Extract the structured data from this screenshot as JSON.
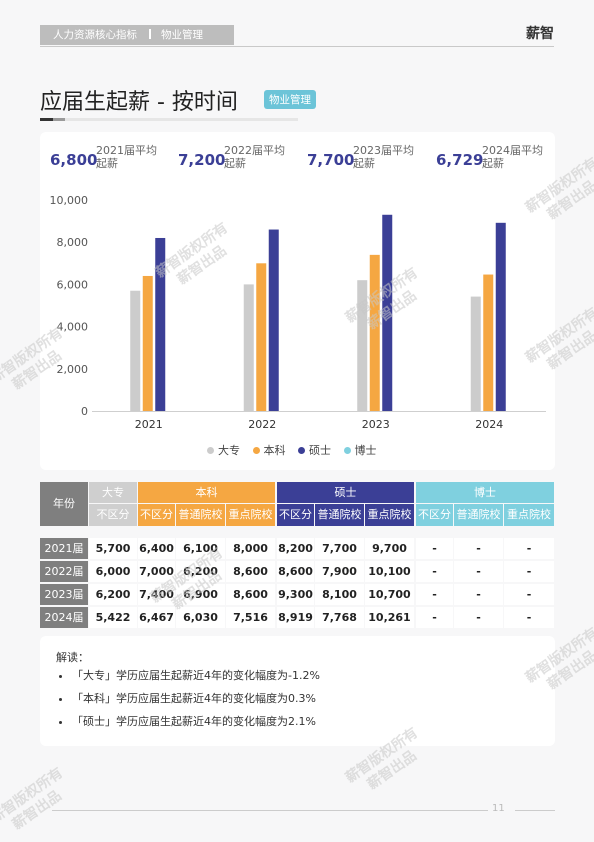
{
  "header": {
    "section": "人力资源核心指标",
    "subsection": "物业管理",
    "brand": "薪智"
  },
  "title": "应届生起薪 - 按时间",
  "tag": "物业管理",
  "stats": [
    {
      "value": "6,800",
      "label": "2021届平均起薪"
    },
    {
      "value": "7,200",
      "label": "2022届平均起薪"
    },
    {
      "value": "7,700",
      "label": "2023届平均起薪"
    },
    {
      "value": "6,729",
      "label": "2024届平均起薪"
    }
  ],
  "colors": {
    "dazhuan": "#cccccc",
    "benke": "#f5a742",
    "shuoshi": "#3b3f96",
    "boshi": "#7fd0df"
  },
  "chart_data": {
    "type": "bar",
    "categories": [
      "2021",
      "2022",
      "2023",
      "2024"
    ],
    "series": [
      {
        "name": "大专",
        "values": [
          5700,
          6000,
          6200,
          5422
        ]
      },
      {
        "name": "本科",
        "values": [
          6400,
          7000,
          7400,
          6467
        ]
      },
      {
        "name": "硕士",
        "values": [
          8200,
          8600,
          9300,
          8919
        ]
      },
      {
        "name": "博士",
        "values": [
          null,
          null,
          null,
          null
        ]
      }
    ],
    "ylim": [
      0,
      10000
    ],
    "yticks": [
      "0",
      "2,000",
      "4,000",
      "6,000",
      "8,000",
      "10,000"
    ],
    "legend_position": "bottom"
  },
  "table": {
    "row_header": "年份",
    "groups": [
      "大专",
      "本科",
      "硕士",
      "博士"
    ],
    "subheaders": [
      "不区分",
      "不区分",
      "普通院校",
      "重点院校",
      "不区分",
      "普通院校",
      "重点院校",
      "不区分",
      "普通院校",
      "重点院校"
    ],
    "rows": [
      {
        "year": "2021届",
        "cells": [
          "5,700",
          "6,400",
          "6,100",
          "8,000",
          "8,200",
          "7,700",
          "9,700",
          "-",
          "-",
          "-"
        ]
      },
      {
        "year": "2022届",
        "cells": [
          "6,000",
          "7,000",
          "6,200",
          "8,600",
          "8,600",
          "7,900",
          "10,100",
          "-",
          "-",
          "-"
        ]
      },
      {
        "year": "2023届",
        "cells": [
          "6,200",
          "7,400",
          "6,900",
          "8,600",
          "9,300",
          "8,100",
          "10,700",
          "-",
          "-",
          "-"
        ]
      },
      {
        "year": "2024届",
        "cells": [
          "5,422",
          "6,467",
          "6,030",
          "7,516",
          "8,919",
          "7,768",
          "10,261",
          "-",
          "-",
          "-"
        ]
      }
    ]
  },
  "notes": {
    "heading": "解读：",
    "items": [
      "「大专」学历应届生起薪近4年的变化幅度为-1.2%",
      "「本科」学历应届生起薪近4年的变化幅度为0.3%",
      "「硕士」学历应届生起薪近4年的变化幅度为2.1%"
    ]
  },
  "page_number": "11",
  "watermark": {
    "line1": "薪智版权所有",
    "line2": "薪智出品"
  }
}
